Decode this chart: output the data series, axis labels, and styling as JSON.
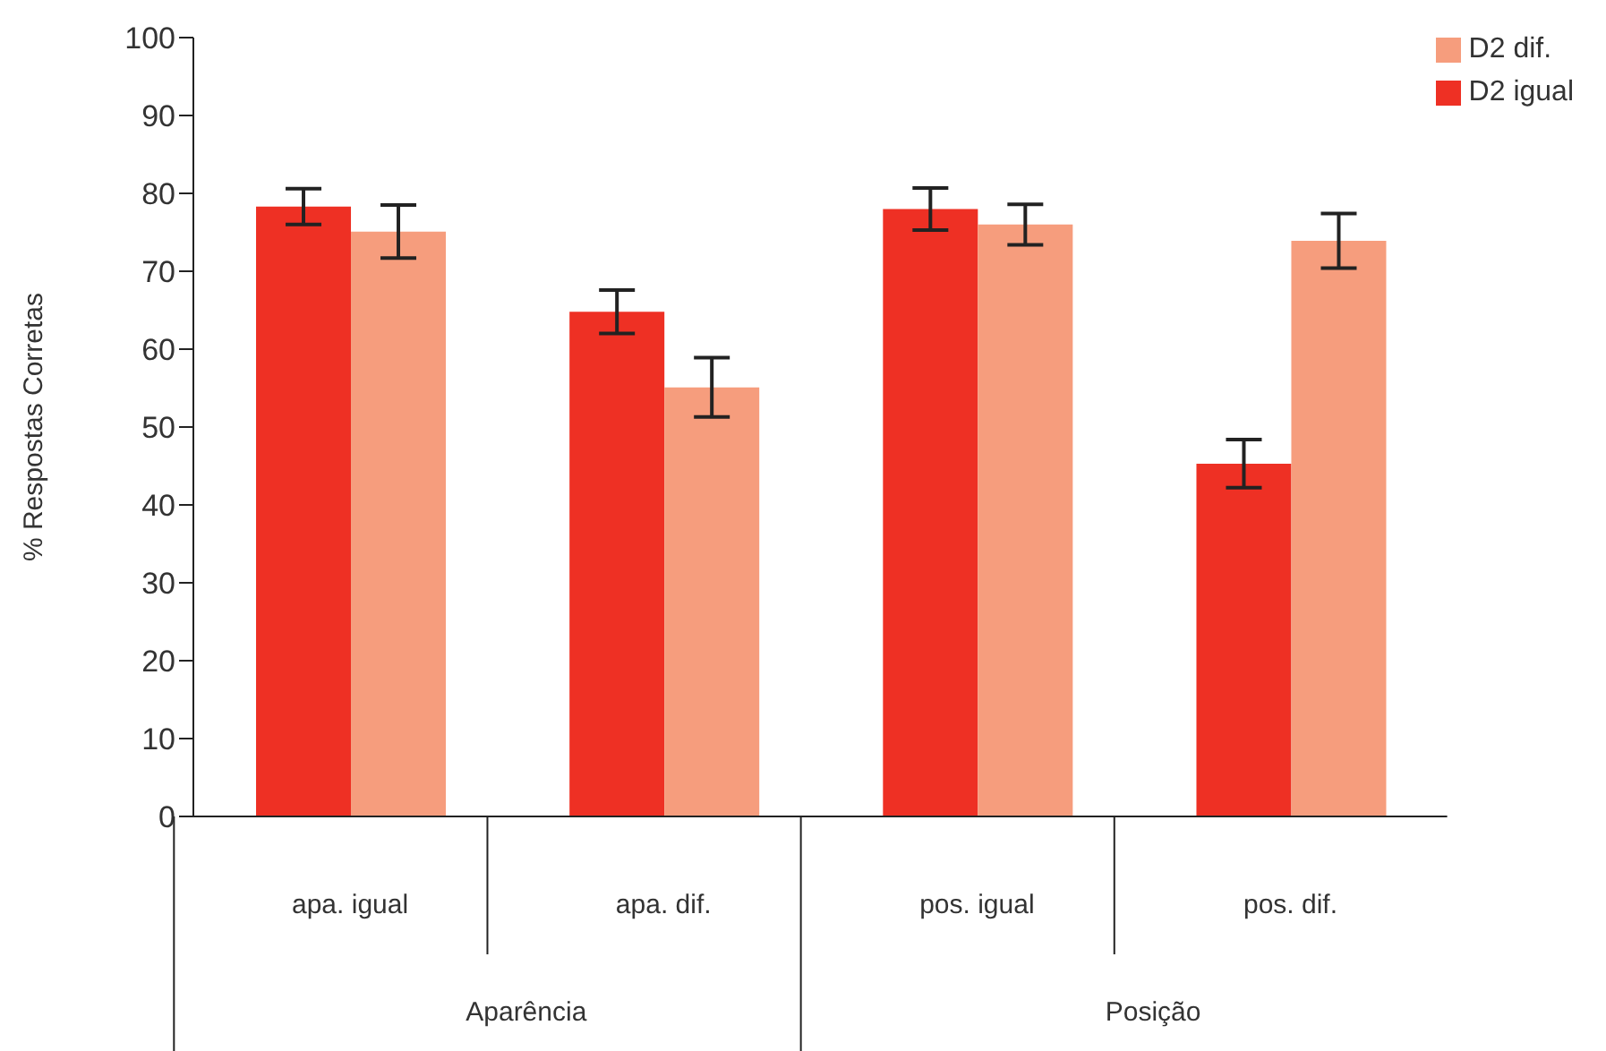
{
  "chart_data": {
    "type": "bar",
    "ylabel": "% Respostas Corretas",
    "categories": [
      "apa. igual",
      "apa. dif.",
      "pos. igual",
      "pos. dif."
    ],
    "annotations": [
      "Aparência",
      "Posição"
    ],
    "series": [
      {
        "name": "D2 igual",
        "color": "#ee3024",
        "values": [
          78.3,
          64.8,
          78.0,
          45.3
        ],
        "errors": [
          2.3,
          2.8,
          2.7,
          3.1
        ]
      },
      {
        "name": "D2 dif.",
        "color": "#f69d7d",
        "values": [
          75.1,
          55.1,
          76.0,
          73.9
        ],
        "errors": [
          3.4,
          3.8,
          2.6,
          3.5
        ]
      }
    ],
    "ylim": [
      0,
      100
    ],
    "yticks": [
      0,
      10,
      20,
      30,
      40,
      50,
      60,
      70,
      80,
      90,
      100
    ],
    "grid": false,
    "legend": "top right"
  }
}
